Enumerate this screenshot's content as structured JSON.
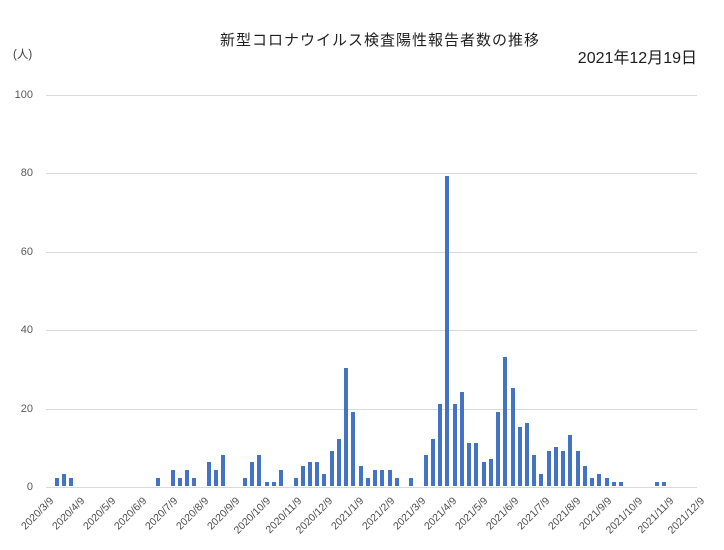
{
  "header": {
    "title": "新型コロナウイルス検査陽性報告者数の推移",
    "date_label": "2021年12月19日"
  },
  "y_axis": {
    "unit": "(人)",
    "ticks": [
      100,
      80,
      60,
      40,
      20,
      0
    ]
  },
  "chart_data": {
    "type": "bar",
    "title": "新型コロナウイルス検査陽性報告者数の推移",
    "as_of_date": "2021年12月19日",
    "ylabel": "(人)",
    "ylim": [
      0,
      100
    ],
    "grid": true,
    "legend": false,
    "bar_color": "#4472C4",
    "grid_color": "#d9d9d9",
    "x_tick_labels": [
      "2020/3/9",
      "2020/4/9",
      "2020/5/9",
      "2020/6/9",
      "2020/7/9",
      "2020/8/9",
      "2020/9/9",
      "2020/10/9",
      "2020/11/9",
      "2020/12/9",
      "2021/1/9",
      "2021/2/9",
      "2021/3/9",
      "2021/4/9",
      "2021/5/9",
      "2021/6/9",
      "2021/7/9",
      "2021/8/9",
      "2021/9/9",
      "2021/10/9",
      "2021/11/9",
      "2021/12/9"
    ],
    "x_interval": "weekly",
    "values_weekly": [
      0,
      2,
      3,
      2,
      0,
      0,
      0,
      0,
      0,
      0,
      0,
      0,
      0,
      0,
      0,
      2,
      0,
      4,
      2,
      4,
      2,
      0,
      6,
      4,
      8,
      0,
      0,
      2,
      6,
      8,
      1,
      1,
      4,
      0,
      2,
      5,
      6,
      6,
      3,
      9,
      12,
      30,
      19,
      5,
      2,
      4,
      4,
      4,
      2,
      0,
      2,
      0,
      8,
      12,
      21,
      79,
      21,
      24,
      11,
      11,
      6,
      7,
      19,
      33,
      25,
      15,
      16,
      8,
      3,
      9,
      10,
      9,
      13,
      9,
      5,
      2,
      3,
      2,
      1,
      1,
      0,
      0,
      0,
      0,
      1,
      1,
      0,
      0,
      0,
      0
    ]
  }
}
